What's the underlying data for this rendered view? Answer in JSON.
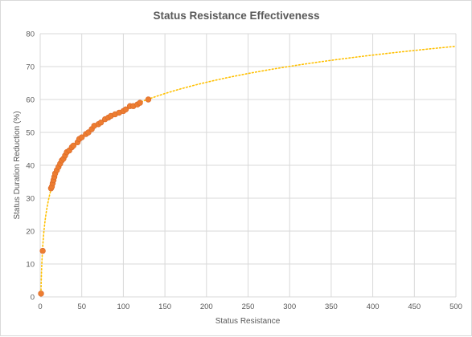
{
  "chart_data": {
    "type": "scatter",
    "title": "Status Resistance Effectiveness",
    "xlabel": "Status Resistance",
    "ylabel": "Status Duration Reduction (%)",
    "xlim": [
      0,
      500
    ],
    "ylim": [
      0,
      80
    ],
    "xticks": [
      0,
      50,
      100,
      150,
      200,
      250,
      300,
      350,
      400,
      450,
      500
    ],
    "yticks": [
      0,
      10,
      20,
      30,
      40,
      50,
      60,
      70,
      80
    ],
    "grid": true,
    "legend": "none",
    "colors": {
      "points": "#ed7d31",
      "point_edge": "#d9692a",
      "trendline": "#ffc000",
      "grid": "#d9d9d9",
      "text": "#595959"
    },
    "trendline": {
      "type": "logarithmic",
      "style": "dotted",
      "range": [
        1,
        500
      ]
    },
    "series": [
      {
        "points": [
          [
            1,
            1
          ],
          [
            3,
            14
          ],
          [
            13,
            33
          ],
          [
            14,
            33.5
          ],
          [
            15,
            34.5
          ],
          [
            16,
            35.5
          ],
          [
            17,
            36.5
          ],
          [
            18,
            37.5
          ],
          [
            20,
            38.5
          ],
          [
            22,
            39.5
          ],
          [
            24,
            40.5
          ],
          [
            26,
            41.5
          ],
          [
            28,
            42
          ],
          [
            30,
            43
          ],
          [
            32,
            44
          ],
          [
            35,
            44.5
          ],
          [
            38,
            45.5
          ],
          [
            40,
            46
          ],
          [
            45,
            47
          ],
          [
            47,
            48
          ],
          [
            50,
            48.5
          ],
          [
            55,
            49.5
          ],
          [
            58,
            50
          ],
          [
            62,
            51
          ],
          [
            65,
            52
          ],
          [
            70,
            52.5
          ],
          [
            73,
            53
          ],
          [
            78,
            54
          ],
          [
            82,
            54.5
          ],
          [
            85,
            55
          ],
          [
            90,
            55.5
          ],
          [
            95,
            56
          ],
          [
            100,
            56.5
          ],
          [
            103,
            57
          ],
          [
            108,
            58
          ],
          [
            112,
            58
          ],
          [
            117,
            58.5
          ],
          [
            120,
            59
          ],
          [
            130,
            60
          ]
        ]
      }
    ]
  }
}
